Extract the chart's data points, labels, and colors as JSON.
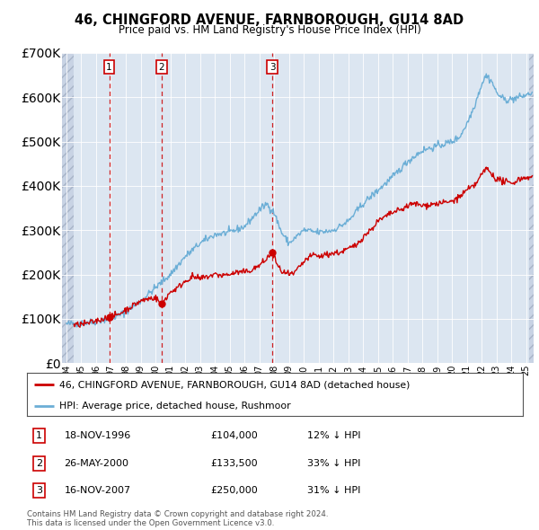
{
  "title": "46, CHINGFORD AVENUE, FARNBOROUGH, GU14 8AD",
  "subtitle": "Price paid vs. HM Land Registry's House Price Index (HPI)",
  "hpi_color": "#6baed6",
  "price_color": "#cc0000",
  "dot_color": "#cc0000",
  "vline_color": "#cc0000",
  "bg_color": "#dce6f1",
  "transactions": [
    {
      "date_num": 1996.88,
      "price": 104000,
      "label": "1",
      "date_str": "18-NOV-1996",
      "pct": "12% ↓ HPI"
    },
    {
      "date_num": 2000.4,
      "price": 133500,
      "label": "2",
      "date_str": "26-MAY-2000",
      "pct": "33% ↓ HPI"
    },
    {
      "date_num": 2007.88,
      "price": 250000,
      "label": "3",
      "date_str": "16-NOV-2007",
      "pct": "31% ↓ HPI"
    }
  ],
  "ylim": [
    0,
    700000
  ],
  "xlim_start": 1993.7,
  "xlim_end": 2025.5,
  "legend_label_red": "46, CHINGFORD AVENUE, FARNBOROUGH, GU14 8AD (detached house)",
  "legend_label_blue": "HPI: Average price, detached house, Rushmoor",
  "footer": "Contains HM Land Registry data © Crown copyright and database right 2024.\nThis data is licensed under the Open Government Licence v3.0.",
  "hpi_keypoints": [
    [
      1994.0,
      88000
    ],
    [
      1995.0,
      90000
    ],
    [
      1996.0,
      94000
    ],
    [
      1997.0,
      100000
    ],
    [
      1998.0,
      115000
    ],
    [
      1999.0,
      140000
    ],
    [
      2000.0,
      170000
    ],
    [
      2001.0,
      200000
    ],
    [
      2002.0,
      240000
    ],
    [
      2003.0,
      270000
    ],
    [
      2004.0,
      290000
    ],
    [
      2005.0,
      295000
    ],
    [
      2006.0,
      308000
    ],
    [
      2007.0,
      345000
    ],
    [
      2007.5,
      360000
    ],
    [
      2008.0,
      340000
    ],
    [
      2008.5,
      295000
    ],
    [
      2009.0,
      270000
    ],
    [
      2009.5,
      285000
    ],
    [
      2010.0,
      300000
    ],
    [
      2011.0,
      295000
    ],
    [
      2012.0,
      300000
    ],
    [
      2013.0,
      320000
    ],
    [
      2014.0,
      360000
    ],
    [
      2015.0,
      390000
    ],
    [
      2016.0,
      420000
    ],
    [
      2017.0,
      455000
    ],
    [
      2018.0,
      480000
    ],
    [
      2019.0,
      490000
    ],
    [
      2020.0,
      500000
    ],
    [
      2020.5,
      510000
    ],
    [
      2021.0,
      540000
    ],
    [
      2021.5,
      580000
    ],
    [
      2022.0,
      630000
    ],
    [
      2022.3,
      650000
    ],
    [
      2022.7,
      635000
    ],
    [
      2023.0,
      610000
    ],
    [
      2023.5,
      595000
    ],
    [
      2024.0,
      595000
    ],
    [
      2024.5,
      600000
    ],
    [
      2025.0,
      605000
    ],
    [
      2025.4,
      610000
    ]
  ],
  "red_keypoints": [
    [
      1994.5,
      85000
    ],
    [
      1995.5,
      90000
    ],
    [
      1996.0,
      95000
    ],
    [
      1996.88,
      104000
    ],
    [
      1997.5,
      110000
    ],
    [
      1998.0,
      120000
    ],
    [
      1998.5,
      130000
    ],
    [
      1999.0,
      140000
    ],
    [
      1999.5,
      145000
    ],
    [
      2000.0,
      148000
    ],
    [
      2000.4,
      133500
    ],
    [
      2001.0,
      160000
    ],
    [
      2001.5,
      170000
    ],
    [
      2002.0,
      185000
    ],
    [
      2002.5,
      195000
    ],
    [
      2003.0,
      190000
    ],
    [
      2003.5,
      195000
    ],
    [
      2004.0,
      200000
    ],
    [
      2004.5,
      198000
    ],
    [
      2005.0,
      200000
    ],
    [
      2005.5,
      205000
    ],
    [
      2006.0,
      205000
    ],
    [
      2006.5,
      210000
    ],
    [
      2007.0,
      220000
    ],
    [
      2007.5,
      235000
    ],
    [
      2007.88,
      250000
    ],
    [
      2008.3,
      215000
    ],
    [
      2008.6,
      205000
    ],
    [
      2009.0,
      200000
    ],
    [
      2009.3,
      200000
    ],
    [
      2009.8,
      220000
    ],
    [
      2010.2,
      235000
    ],
    [
      2010.7,
      245000
    ],
    [
      2011.0,
      240000
    ],
    [
      2011.5,
      245000
    ],
    [
      2012.0,
      248000
    ],
    [
      2012.5,
      250000
    ],
    [
      2013.0,
      258000
    ],
    [
      2013.5,
      265000
    ],
    [
      2014.0,
      285000
    ],
    [
      2014.5,
      300000
    ],
    [
      2015.0,
      320000
    ],
    [
      2015.5,
      330000
    ],
    [
      2016.0,
      340000
    ],
    [
      2016.5,
      345000
    ],
    [
      2017.0,
      355000
    ],
    [
      2017.5,
      360000
    ],
    [
      2018.0,
      355000
    ],
    [
      2018.5,
      358000
    ],
    [
      2019.0,
      360000
    ],
    [
      2019.5,
      362000
    ],
    [
      2020.0,
      365000
    ],
    [
      2020.5,
      375000
    ],
    [
      2021.0,
      390000
    ],
    [
      2021.5,
      400000
    ],
    [
      2022.0,
      425000
    ],
    [
      2022.3,
      440000
    ],
    [
      2022.6,
      430000
    ],
    [
      2023.0,
      415000
    ],
    [
      2023.5,
      410000
    ],
    [
      2024.0,
      405000
    ],
    [
      2024.5,
      415000
    ],
    [
      2025.0,
      420000
    ],
    [
      2025.4,
      418000
    ]
  ]
}
